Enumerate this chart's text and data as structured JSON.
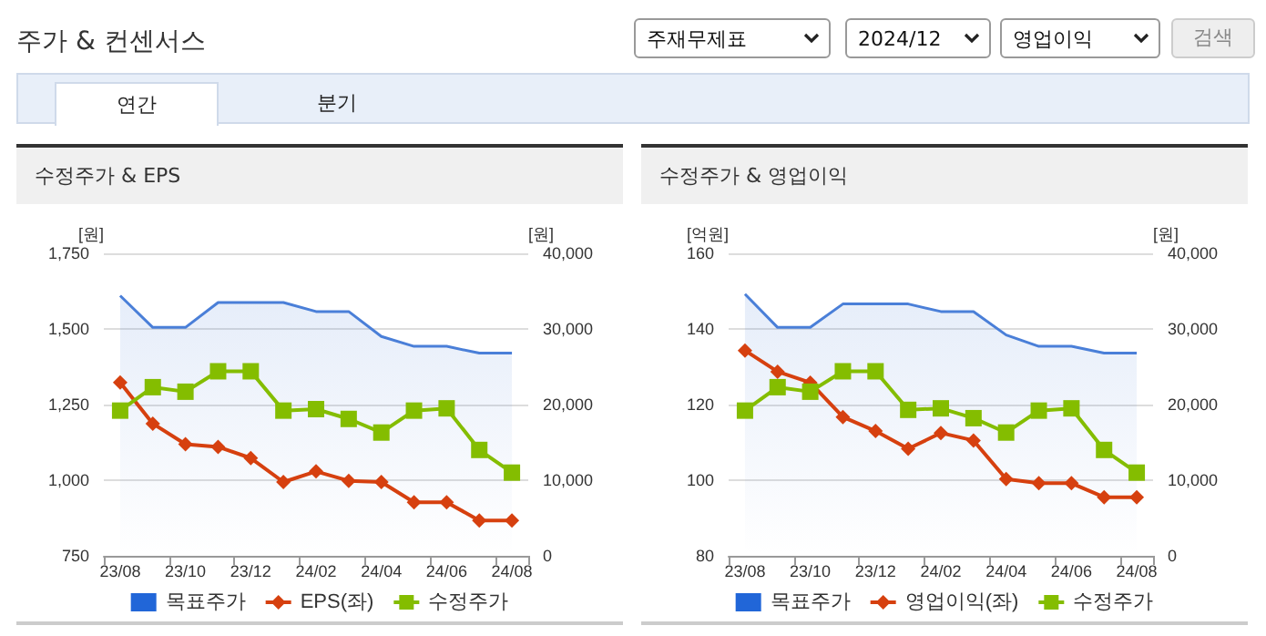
{
  "chart_data": [
    {
      "type": "other",
      "title": "주가 & 컨센서스",
      "annotations": [
        "주재무제표",
        "2024/12",
        "영업이익",
        "검색",
        "연간",
        "분기"
      ]
    },
    {
      "type": "line",
      "title": "수정주가 & EPS",
      "ylabel": "[원]",
      "y2label": "[원]",
      "categories": [
        "23/08",
        null,
        "23/10",
        null,
        "23/12",
        null,
        "24/02",
        null,
        "24/04",
        null,
        "24/06",
        null,
        "24/08"
      ],
      "ylim": [
        750,
        1750
      ],
      "yticks": [
        750,
        {
          "value": 1000,
          "label": "1,000"
        },
        {
          "value": 1250,
          "label": "1,250"
        },
        {
          "value": 1500,
          "label": "1,500"
        },
        {
          "value": 1750,
          "label": "1,750"
        }
      ],
      "y2lim": [
        0,
        40000
      ],
      "y2ticks": [
        0,
        {
          "value": 10000,
          "label": "10,000"
        },
        {
          "value": 20000,
          "label": "20,000"
        },
        {
          "value": 30000,
          "label": "30,000"
        },
        {
          "value": 40000,
          "label": "40,000"
        }
      ],
      "grid": "y",
      "legend": "bottom",
      "series": [
        {
          "name": "목표주가",
          "type": "area",
          "axis": "y2",
          "color": "#4a7fd8",
          "marker": "none",
          "values": [
            34400,
            30200,
            30200,
            33500,
            33500,
            33500,
            32300,
            32300,
            29000,
            27700,
            27700,
            26800,
            26800
          ]
        },
        {
          "name": "EPS(좌)",
          "type": "line",
          "color": "#d6400f",
          "marker": "diamond",
          "values": [
            1323,
            1187,
            1119,
            1110,
            1073,
            994,
            1029,
            998,
            994,
            927,
            927,
            867,
            867
          ]
        },
        {
          "name": "수정주가",
          "type": "line",
          "axis": "y2",
          "color": "#84bd00",
          "marker": "square",
          "values": [
            19200,
            22300,
            21700,
            24400,
            24400,
            19200,
            19400,
            18100,
            16300,
            19200,
            19500,
            14000,
            11000
          ]
        }
      ]
    },
    {
      "type": "line",
      "title": "수정주가 & 영업이익",
      "ylabel": "[억원]",
      "y2label": "[원]",
      "categories": [
        "23/08",
        null,
        "23/10",
        null,
        "23/12",
        null,
        "24/02",
        null,
        "24/04",
        null,
        "24/06",
        null,
        "24/08"
      ],
      "ylim": [
        80,
        160
      ],
      "yticks": [
        80,
        100,
        120,
        140,
        160
      ],
      "y2lim": [
        0,
        40000
      ],
      "y2ticks": [
        0,
        {
          "value": 10000,
          "label": "10,000"
        },
        {
          "value": 20000,
          "label": "20,000"
        },
        {
          "value": 30000,
          "label": "30,000"
        },
        {
          "value": 40000,
          "label": "40,000"
        }
      ],
      "grid": "y",
      "legend": "bottom",
      "series": [
        {
          "name": "목표주가",
          "type": "area",
          "axis": "y2",
          "color": "#4a7fd8",
          "marker": "none",
          "values": [
            34600,
            30200,
            30200,
            33300,
            33300,
            33300,
            32300,
            32300,
            29200,
            27700,
            27700,
            26800,
            26800
          ]
        },
        {
          "name": "영업이익(좌)",
          "type": "line",
          "color": "#d6400f",
          "marker": "diamond",
          "values": [
            134.3,
            128.7,
            125.8,
            116.7,
            113,
            108.3,
            112.5,
            110.5,
            100.3,
            99.2,
            99.2,
            95.5,
            95.5
          ]
        },
        {
          "name": "수정주가",
          "type": "line",
          "axis": "y2",
          "color": "#84bd00",
          "marker": "square",
          "values": [
            19200,
            22300,
            21700,
            24400,
            24400,
            19300,
            19500,
            18200,
            16300,
            19200,
            19500,
            14000,
            11000
          ]
        }
      ]
    }
  ]
}
